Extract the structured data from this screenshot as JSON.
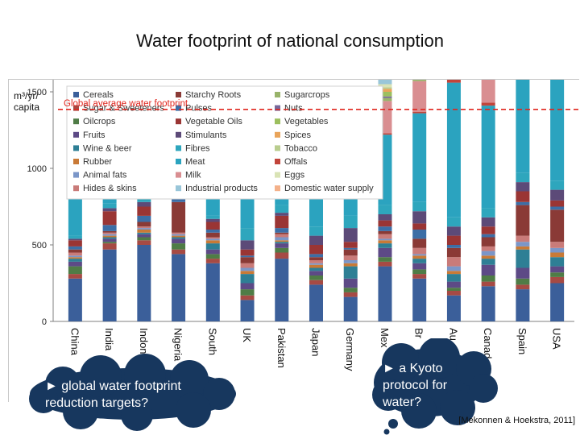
{
  "page": {
    "title": "Water footprint of national consumption"
  },
  "callouts": {
    "left": "► global water footprint reduction targets?",
    "right": "► a Kyoto protocol for water?"
  },
  "citation": "[Mekonnen & Hoekstra, 2011]",
  "colors": {
    "cloud": "#17375e",
    "reference_line": "#e0261e",
    "axis": "#7f7f7f"
  },
  "chart_data": {
    "type": "bar",
    "stacked": true,
    "title": "Water footprint of national consumption",
    "ylabel_line1": "m³/yr/",
    "ylabel_line2": "capita",
    "xlabel": "",
    "ylim": [
      0,
      2650
    ],
    "yticks": [
      0,
      500,
      1000,
      1500,
      2000,
      2500
    ],
    "reference": {
      "label": "Global average water footprint",
      "value": 1385
    },
    "legend_position": "top-left (inside plot)",
    "categories": [
      "China",
      "India",
      "Indonesia",
      "Nigeria",
      "South Africa",
      "UK",
      "Pakistan",
      "Japan",
      "Germany",
      "Mexico",
      "Brazil",
      "Australia",
      "Canada",
      "Spain",
      "USA"
    ],
    "category_labels": [
      "China",
      "India",
      "Indone",
      "Nigeria",
      "South",
      "UK",
      "Pakistan",
      "Japan",
      "Germany",
      "Mex",
      "Br",
      "Au",
      "Canad",
      "Spain",
      "USA"
    ],
    "series": [
      {
        "name": "Cereals",
        "color": "#3b5f9a",
        "values": [
          280,
          470,
          500,
          440,
          380,
          140,
          410,
          240,
          160,
          360,
          280,
          170,
          230,
          210,
          250
        ]
      },
      {
        "name": "Sugar & Sweeteners",
        "color": "#a64a44",
        "values": [
          30,
          40,
          30,
          30,
          30,
          30,
          40,
          30,
          30,
          30,
          30,
          30,
          30,
          30,
          40
        ]
      },
      {
        "name": "Oilcrops",
        "color": "#4f7c46",
        "values": [
          50,
          10,
          20,
          40,
          30,
          40,
          30,
          30,
          30,
          30,
          30,
          20,
          40,
          40,
          30
        ]
      },
      {
        "name": "Fruits",
        "color": "#5d4a86",
        "values": [
          30,
          20,
          20,
          30,
          30,
          40,
          30,
          30,
          60,
          60,
          40,
          40,
          70,
          70,
          40
        ]
      },
      {
        "name": "Wine & beer",
        "color": "#2e7f95",
        "values": [
          20,
          10,
          10,
          10,
          40,
          60,
          10,
          20,
          80,
          30,
          30,
          50,
          40,
          120,
          60
        ]
      },
      {
        "name": "Rubber",
        "color": "#c97a36",
        "values": [
          10,
          10,
          20,
          10,
          20,
          20,
          10,
          20,
          20,
          20,
          20,
          20,
          20,
          20,
          30
        ]
      },
      {
        "name": "Animal fats",
        "color": "#7b96c8",
        "values": [
          10,
          10,
          10,
          10,
          10,
          20,
          20,
          10,
          20,
          10,
          10,
          30,
          30,
          30,
          30
        ]
      },
      {
        "name": "Hides & skins",
        "color": "#c97b79",
        "values": [
          20,
          10,
          10,
          10,
          10,
          30,
          20,
          20,
          30,
          30,
          40,
          60,
          30,
          40,
          40
        ]
      },
      {
        "name": "Starchy Roots",
        "color": "#8a3a36",
        "values": [
          20,
          10,
          30,
          200,
          30,
          40,
          10,
          20,
          40,
          20,
          60,
          60,
          60,
          200,
          210
        ]
      },
      {
        "name": "Pulses",
        "color": "#3c6ea6",
        "values": [
          20,
          40,
          40,
          30,
          20,
          10,
          30,
          20,
          10,
          30,
          60,
          20,
          20,
          20,
          20
        ]
      },
      {
        "name": "Vegetable Oils",
        "color": "#9a3534",
        "values": [
          40,
          90,
          60,
          40,
          50,
          40,
          80,
          60,
          40,
          40,
          40,
          60,
          50,
          70,
          40
        ]
      },
      {
        "name": "Stimulants",
        "color": "#5c4a78",
        "values": [
          10,
          20,
          30,
          20,
          20,
          60,
          20,
          60,
          90,
          40,
          80,
          60,
          60,
          60,
          70
        ]
      },
      {
        "name": "Fibres",
        "color": "#2ea6bd",
        "values": [
          20,
          30,
          20,
          10,
          20,
          80,
          50,
          60,
          80,
          60,
          60,
          60,
          60,
          60,
          60
        ]
      },
      {
        "name": "Meat",
        "color": "#2ba3bf",
        "values": [
          240,
          30,
          50,
          60,
          320,
          290,
          60,
          350,
          380,
          460,
          580,
          880,
          670,
          740,
          880
        ]
      },
      {
        "name": "Offals",
        "color": "#c2443a",
        "values": [
          10,
          10,
          10,
          10,
          10,
          10,
          10,
          10,
          10,
          10,
          10,
          20,
          20,
          20,
          20
        ]
      },
      {
        "name": "Milk",
        "color": "#d98e91",
        "values": [
          60,
          160,
          60,
          60,
          90,
          160,
          230,
          80,
          200,
          210,
          200,
          230,
          250,
          220,
          220
        ]
      },
      {
        "name": "Sugarcrops",
        "color": "#98b36a",
        "values": [
          20,
          30,
          30,
          20,
          30,
          20,
          40,
          20,
          20,
          20,
          40,
          20,
          20,
          20,
          30
        ]
      },
      {
        "name": "Nuts",
        "color": "#77679a",
        "values": [
          10,
          10,
          10,
          10,
          10,
          20,
          10,
          10,
          20,
          10,
          10,
          20,
          20,
          30,
          20
        ]
      },
      {
        "name": "Vegetables",
        "color": "#9cbf5e",
        "values": [
          40,
          20,
          20,
          30,
          20,
          30,
          20,
          30,
          20,
          30,
          20,
          30,
          30,
          40,
          30
        ]
      },
      {
        "name": "Spices",
        "color": "#e9a45a",
        "values": [
          10,
          20,
          20,
          10,
          10,
          10,
          20,
          10,
          10,
          20,
          10,
          10,
          10,
          10,
          10
        ]
      },
      {
        "name": "Tobacco",
        "color": "#b9cd8e",
        "values": [
          10,
          10,
          10,
          10,
          10,
          10,
          10,
          10,
          10,
          10,
          10,
          10,
          20,
          20,
          20
        ]
      },
      {
        "name": "Eggs",
        "color": "#d9e3b5",
        "values": [
          20,
          10,
          10,
          10,
          20,
          20,
          10,
          20,
          20,
          20,
          20,
          20,
          30,
          30,
          30
        ]
      },
      {
        "name": "Industrial products",
        "color": "#99c6d9",
        "values": [
          60,
          10,
          30,
          10,
          50,
          110,
          20,
          150,
          70,
          60,
          50,
          80,
          150,
          50,
          350
        ]
      },
      {
        "name": "Domestic water supply",
        "color": "#f4b18a",
        "values": [
          60,
          20,
          40,
          50,
          40,
          60,
          60,
          50,
          60,
          70,
          60,
          60,
          80,
          70,
          110
        ]
      }
    ]
  }
}
